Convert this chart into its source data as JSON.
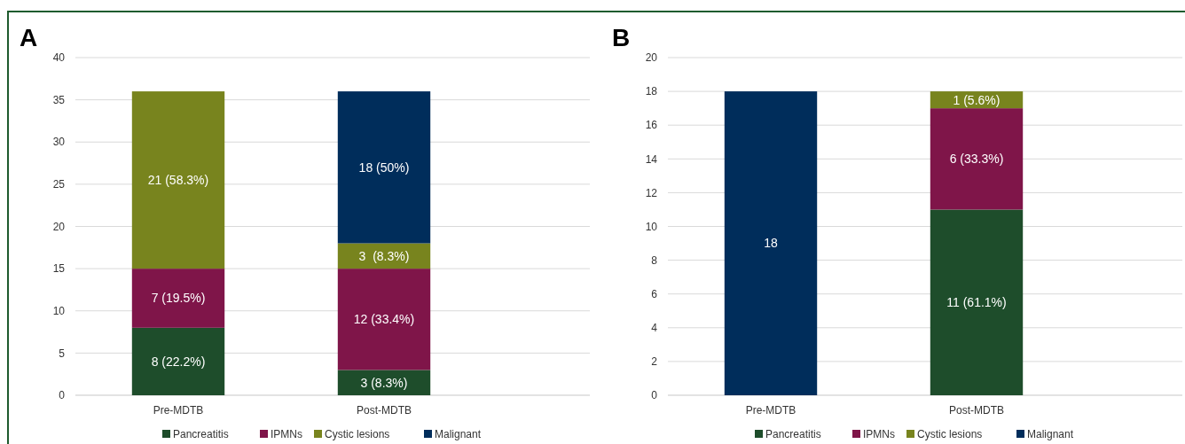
{
  "chart_data": [
    {
      "type": "bar",
      "title": "A",
      "stacked": true,
      "categories": [
        "Pre-MDTB",
        "Post-MDTB"
      ],
      "ylim": [
        0,
        40
      ],
      "yticks": [
        0,
        5,
        10,
        15,
        20,
        25,
        30,
        35,
        40
      ],
      "grid": "y",
      "legend": "bottom",
      "series": [
        {
          "name": "Pancreatitis",
          "color": "#1e4d2b",
          "values": [
            8,
            3
          ],
          "value_labels": [
            "8 (22.2%)",
            "3 (8.3%)"
          ]
        },
        {
          "name": "IPMNs",
          "color": "#7f1549",
          "values": [
            7,
            12
          ],
          "value_labels": [
            "7 (19.5%)",
            "12 (33.4%)"
          ]
        },
        {
          "name": "Cystic lesions",
          "color": "#78841e",
          "values": [
            21,
            3
          ],
          "value_labels": [
            "21 (58.3%)",
            "3  (8.3%)"
          ]
        },
        {
          "name": "Malignant",
          "color": "#002d5b",
          "values": [
            null,
            18
          ],
          "value_labels": [
            null,
            "18 (50%)"
          ]
        }
      ]
    },
    {
      "type": "bar",
      "title": "B",
      "stacked": true,
      "categories": [
        "Pre-MDTB",
        "Post-MDTB"
      ],
      "ylim": [
        0,
        20
      ],
      "yticks": [
        0,
        2,
        4,
        6,
        8,
        10,
        12,
        14,
        16,
        18,
        20
      ],
      "grid": "y",
      "legend": "bottom",
      "series": [
        {
          "name": "Pancreatitis",
          "color": "#1e4d2b",
          "values": [
            null,
            11
          ],
          "value_labels": [
            null,
            "11 (61.1%)"
          ]
        },
        {
          "name": "IPMNs",
          "color": "#7f1549",
          "values": [
            null,
            6
          ],
          "value_labels": [
            null,
            "6 (33.3%)"
          ]
        },
        {
          "name": "Cystic lesions",
          "color": "#78841e",
          "values": [
            null,
            1
          ],
          "value_labels": [
            null,
            "1 (5.6%)"
          ]
        },
        {
          "name": "Malignant",
          "color": "#002d5b",
          "values": [
            18,
            null
          ],
          "value_labels": [
            "18",
            null
          ]
        }
      ]
    }
  ]
}
